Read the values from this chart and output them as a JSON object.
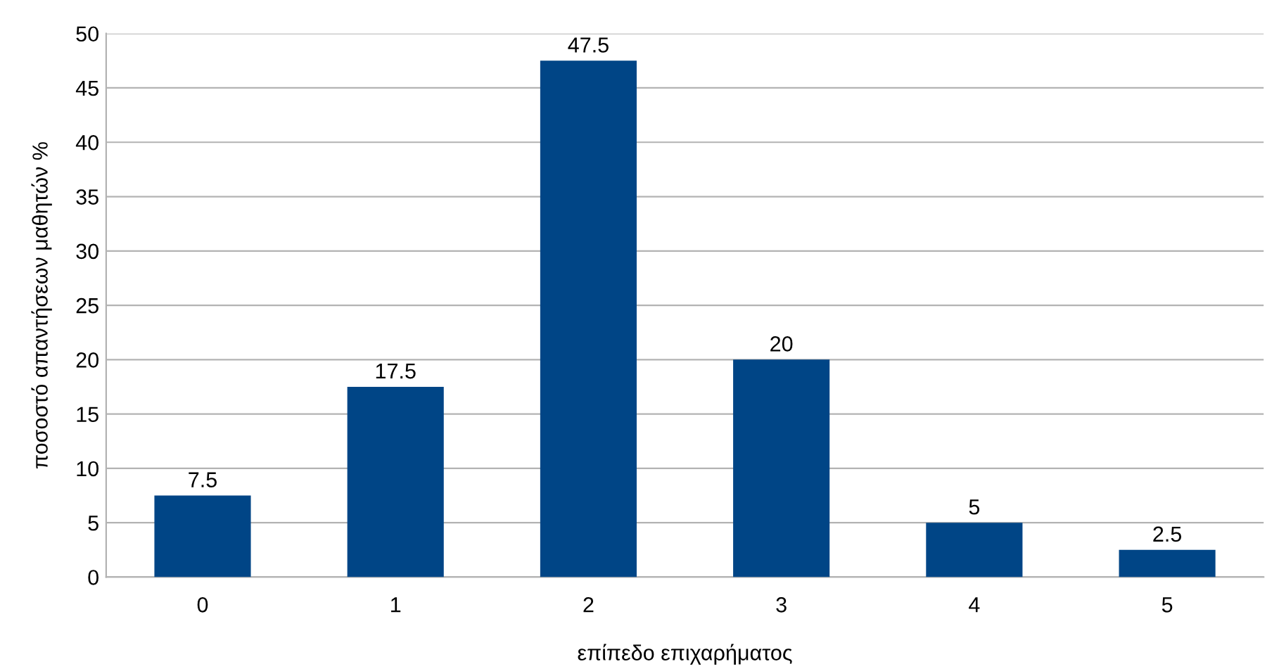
{
  "chart_data": {
    "type": "bar",
    "xlabel": "επίπεδο επιχαρήματος",
    "ylabel": "ποσοστό απαντήσεων μαθητών %",
    "categories": [
      "0",
      "1",
      "2",
      "3",
      "4",
      "5"
    ],
    "values": [
      7.5,
      17.5,
      47.5,
      20,
      5,
      2.5
    ],
    "color": "#004586",
    "ylim": [
      0,
      50
    ],
    "yticks": [
      0,
      5,
      10,
      15,
      20,
      25,
      30,
      35,
      40,
      45,
      50
    ],
    "grid": "y",
    "data_labels": true,
    "legend": false
  }
}
